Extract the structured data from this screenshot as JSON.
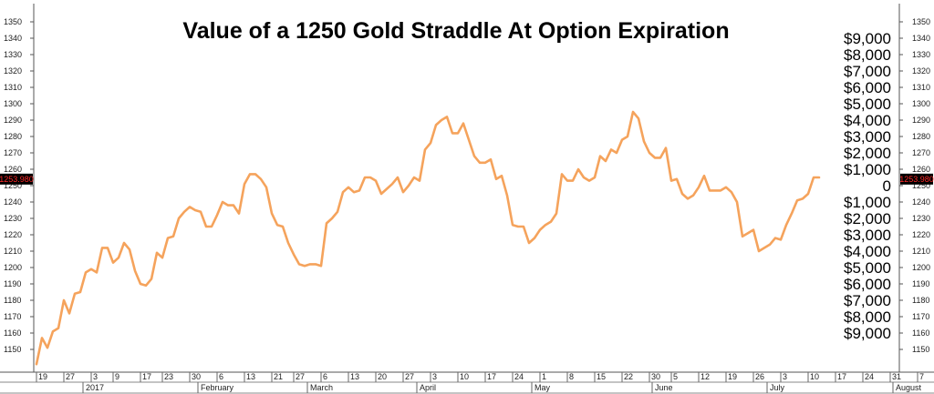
{
  "chart_data": {
    "type": "line",
    "title": "Value of a 1250 Gold Straddle At Option Expiration",
    "xlabel": "",
    "ylabel": "",
    "ylim": [
      1140,
      1355
    ],
    "grid": false,
    "legend": "none",
    "y_ticks": [
      1150,
      1160,
      1170,
      1180,
      1190,
      1200,
      1210,
      1220,
      1230,
      1240,
      1250,
      1260,
      1270,
      1280,
      1290,
      1300,
      1310,
      1320,
      1330,
      1340,
      1350
    ],
    "strike": 1250,
    "last_price": 1253.98,
    "last_price_label": "1253.980",
    "line_color": "#f5a35c",
    "price_tag_color": "#ff2a2a",
    "straddle_labels": [
      "$9,000",
      "$8,000",
      "$7,000",
      "$6,000",
      "$5,000",
      "$4,000",
      "$3,000",
      "$2,000",
      "$1,000",
      "0",
      "$1,000",
      "$2,000",
      "$3,000",
      "$4,000",
      "$5,000",
      "$6,000",
      "$7,000",
      "$8,000",
      "$9,000"
    ],
    "straddle_label_prices": [
      1340,
      1330,
      1320,
      1310,
      1300,
      1290,
      1280,
      1270,
      1260,
      1250,
      1240,
      1230,
      1220,
      1210,
      1200,
      1190,
      1180,
      1170,
      1160
    ],
    "x_day_ticks": [
      {
        "label": "19",
        "i": 0
      },
      {
        "label": "27",
        "i": 5
      },
      {
        "label": "3",
        "i": 10
      },
      {
        "label": "9",
        "i": 14
      },
      {
        "label": "17",
        "i": 19
      },
      {
        "label": "23",
        "i": 23
      },
      {
        "label": "30",
        "i": 28
      },
      {
        "label": "6",
        "i": 33
      },
      {
        "label": "13",
        "i": 38
      },
      {
        "label": "21",
        "i": 43
      },
      {
        "label": "27",
        "i": 47
      },
      {
        "label": "6",
        "i": 52
      },
      {
        "label": "13",
        "i": 57
      },
      {
        "label": "20",
        "i": 62
      },
      {
        "label": "27",
        "i": 67
      },
      {
        "label": "3",
        "i": 72
      },
      {
        "label": "10",
        "i": 77
      },
      {
        "label": "17",
        "i": 82
      },
      {
        "label": "24",
        "i": 87
      },
      {
        "label": "1",
        "i": 92
      },
      {
        "label": "8",
        "i": 97
      },
      {
        "label": "15",
        "i": 102
      },
      {
        "label": "22",
        "i": 107
      },
      {
        "label": "30",
        "i": 112
      },
      {
        "label": "5",
        "i": 116
      },
      {
        "label": "12",
        "i": 121
      },
      {
        "label": "19",
        "i": 126
      },
      {
        "label": "26",
        "i": 131
      },
      {
        "label": "3",
        "i": 136
      },
      {
        "label": "10",
        "i": 141
      },
      {
        "label": "17",
        "i": 146
      },
      {
        "label": "24",
        "i": 151
      },
      {
        "label": "31",
        "i": 156
      },
      {
        "label": "7",
        "i": 161
      }
    ],
    "x_month_labels": [
      {
        "label": "2017",
        "i": 9
      },
      {
        "label": "February",
        "i": 30
      },
      {
        "label": "March",
        "i": 50
      },
      {
        "label": "April",
        "i": 70
      },
      {
        "label": "May",
        "i": 91
      },
      {
        "label": "June",
        "i": 113
      },
      {
        "label": "July",
        "i": 134
      },
      {
        "label": "August",
        "i": 157
      }
    ],
    "series": [
      {
        "values": [
          1141,
          1157,
          1151,
          1161,
          1163,
          1180,
          1172,
          1184,
          1185,
          1197,
          1199,
          1197,
          1212,
          1212,
          1203,
          1206,
          1215,
          1211,
          1198,
          1190,
          1189,
          1193,
          1209,
          1206,
          1218,
          1219,
          1230,
          1234,
          1237,
          1235,
          1234,
          1225,
          1225,
          1232,
          1240,
          1238,
          1238,
          1233,
          1251,
          1257,
          1257,
          1254,
          1249,
          1233,
          1226,
          1225,
          1215,
          1208,
          1202,
          1201,
          1202,
          1202,
          1201,
          1227,
          1230,
          1234,
          1246,
          1249,
          1246,
          1247,
          1255,
          1255,
          1253,
          1245,
          1248,
          1251,
          1255,
          1246,
          1250,
          1255,
          1253,
          1272,
          1276,
          1287,
          1290,
          1292,
          1282,
          1282,
          1288,
          1278,
          1268,
          1264,
          1264,
          1266,
          1254,
          1256,
          1244,
          1226,
          1225,
          1225,
          1215,
          1218,
          1223,
          1226,
          1228,
          1233,
          1257,
          1253,
          1253,
          1260,
          1255,
          1253,
          1255,
          1268,
          1265,
          1272,
          1270,
          1278,
          1280,
          1295,
          1291,
          1277,
          1270,
          1267,
          1267,
          1273,
          1253,
          1254,
          1245,
          1242,
          1244,
          1249,
          1256,
          1247,
          1247,
          1247,
          1249,
          1246,
          1240,
          1219,
          1221,
          1223,
          1210,
          1212,
          1214,
          1218,
          1217,
          1226,
          1233,
          1241,
          1242,
          1245,
          1255,
          1255
        ]
      }
    ]
  }
}
